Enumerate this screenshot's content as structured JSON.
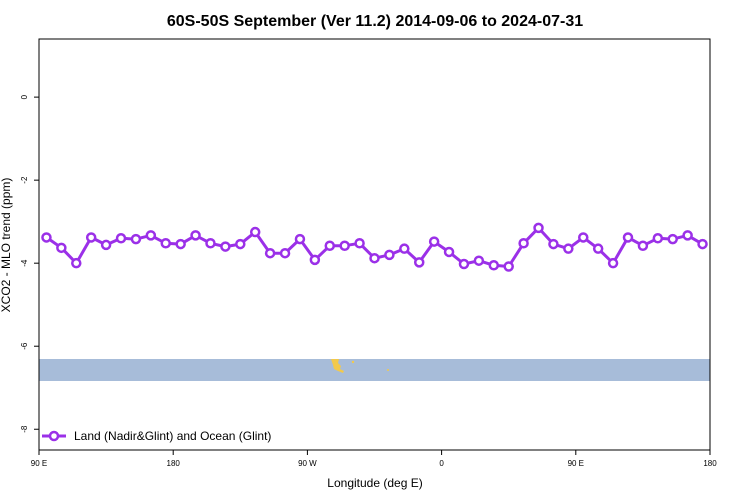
{
  "chart_data": {
    "type": "line",
    "title": "60S-50S September (Ver 11.2)   2014-09-06 to 2024-07-31",
    "xlabel": "Longitude (deg E)",
    "ylabel": "XCO2 - MLO trend (ppm)",
    "x_ticks": [
      {
        "value": 90,
        "label": "90 E"
      },
      {
        "value": 180,
        "label": "180"
      },
      {
        "value": 270,
        "label": "90 W"
      },
      {
        "value": 360,
        "label": "0"
      },
      {
        "value": 450,
        "label": "90 E"
      },
      {
        "value": 540,
        "label": "180"
      }
    ],
    "y_ticks": [
      {
        "value": 0,
        "label": "0"
      },
      {
        "value": -2,
        "label": "-2"
      },
      {
        "value": -4,
        "label": "-4"
      },
      {
        "value": -6,
        "label": "-6"
      },
      {
        "value": -8,
        "label": "-8"
      }
    ],
    "xlim": [
      90,
      540
    ],
    "ylim": [
      -8.5,
      1.4
    ],
    "series": [
      {
        "name": "Land (Nadir&Glint) and Ocean (Glint)",
        "color": "#9b30e8",
        "x": [
          95,
          105,
          115,
          125,
          135,
          145,
          155,
          165,
          175,
          185,
          195,
          205,
          215,
          225,
          235,
          245,
          255,
          265,
          275,
          285,
          295,
          305,
          315,
          325,
          335,
          345,
          355,
          365,
          375,
          385,
          395,
          405,
          415,
          425,
          435,
          445,
          455,
          465,
          475,
          485,
          495,
          505,
          515,
          525,
          535
        ],
        "values": [
          -3.38,
          -3.63,
          -4.0,
          -3.38,
          -3.56,
          -3.4,
          -3.42,
          -3.33,
          -3.52,
          -3.54,
          -3.33,
          -3.52,
          -3.6,
          -3.54,
          -3.25,
          -3.76,
          -3.76,
          -3.42,
          -3.92,
          -3.58,
          -3.58,
          -3.52,
          -3.88,
          -3.8,
          -3.65,
          -3.98,
          -3.48,
          -3.73,
          -4.02,
          -3.94,
          -4.05,
          -4.08,
          -3.52,
          -3.15,
          -3.54,
          -3.65,
          -3.38,
          -3.65,
          -4.0,
          -3.38,
          -3.58,
          -3.4,
          -3.42,
          -3.33,
          -3.54
        ]
      }
    ],
    "legend_position": "bottom-left",
    "grid": false,
    "inset_map": {
      "ocean_color": "#a7bcd9",
      "land_color": "#f2c94c",
      "lat_range": [
        -60,
        -50
      ]
    }
  }
}
